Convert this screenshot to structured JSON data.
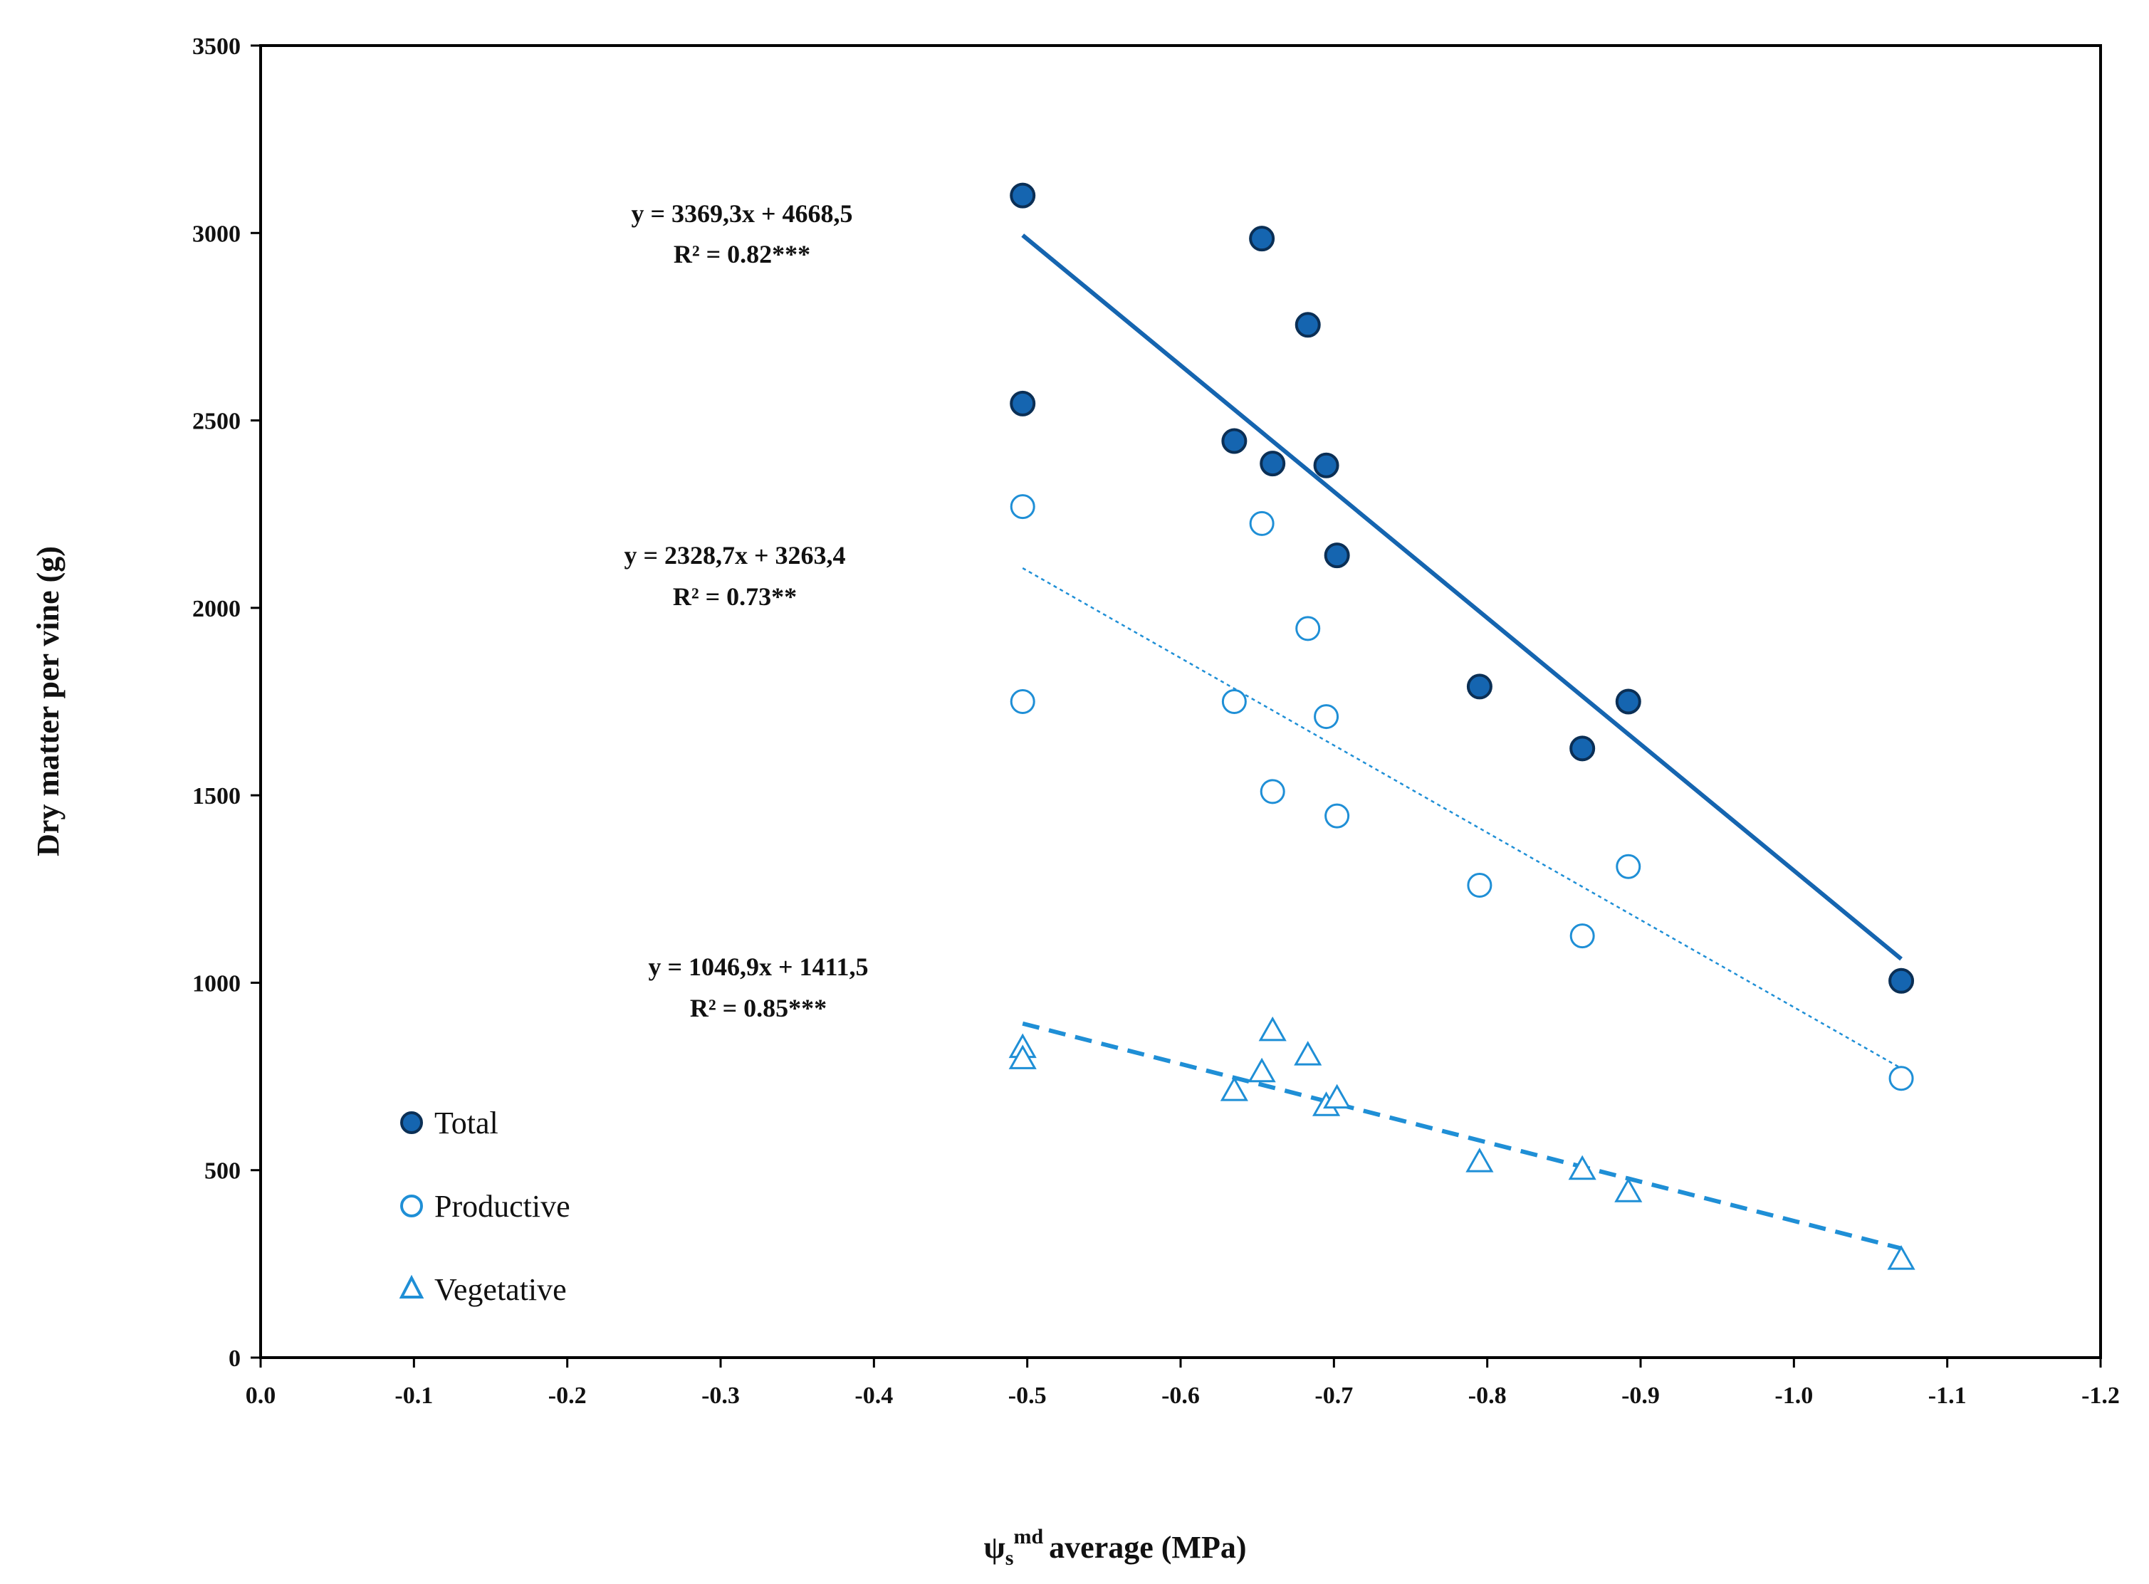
{
  "chart_data": {
    "type": "scatter",
    "title": "",
    "xlabel": "ψsmd average (MPa)",
    "xlabel_parts": {
      "base": "ψ",
      "sub": "s",
      "sup": "md",
      "rest": "average (MPa)"
    },
    "ylabel": "Dry matter per vine (g)",
    "xlim": [
      0,
      -1.2
    ],
    "ylim": [
      0,
      3500
    ],
    "x_ticks": [
      "0.0",
      "-0.1",
      "-0.2",
      "-0.3",
      "-0.4",
      "-0.5",
      "-0.6",
      "-0.7",
      "-0.8",
      "-0.9",
      "-1.0",
      "-1.1",
      "-1.2"
    ],
    "x_tick_values": [
      0,
      -0.1,
      -0.2,
      -0.3,
      -0.4,
      -0.5,
      -0.6,
      -0.7,
      -0.8,
      -0.9,
      -1.0,
      -1.1,
      -1.2
    ],
    "y_ticks": [
      "0",
      "500",
      "1000",
      "1500",
      "2000",
      "2500",
      "3000",
      "3500"
    ],
    "y_tick_values": [
      0,
      500,
      1000,
      1500,
      2000,
      2500,
      3000,
      3500
    ],
    "grid": false,
    "legend_position": "lower-left",
    "series": [
      {
        "name": "Total",
        "marker": "filled-circle",
        "color": "#1565b0",
        "edge_color": "#0b2f55",
        "x": [
          -0.497,
          -0.497,
          -0.653,
          -0.683,
          -0.635,
          -0.66,
          -0.695,
          -0.702,
          -0.795,
          -0.862,
          -0.892,
          -1.07
        ],
        "y": [
          3100,
          2545,
          2985,
          2755,
          2445,
          2385,
          2380,
          2140,
          1790,
          1625,
          1750,
          1005
        ],
        "trendline": {
          "equation": "y = 3369,3x + 4668,5",
          "r2": "R² = 0.82***",
          "slope": 3369.3,
          "intercept": 4668.5,
          "x_range": [
            -0.497,
            -1.07
          ],
          "style": "solid"
        }
      },
      {
        "name": "Productive",
        "marker": "open-circle",
        "color": "#1f8fd6",
        "x": [
          -0.497,
          -0.497,
          -0.653,
          -0.683,
          -0.635,
          -0.66,
          -0.695,
          -0.702,
          -0.795,
          -0.862,
          -0.892,
          -1.07
        ],
        "y": [
          2270,
          1750,
          2225,
          1945,
          1750,
          1510,
          1710,
          1445,
          1260,
          1125,
          1310,
          745
        ],
        "trendline": {
          "equation": "y = 2328,7x + 3263,4",
          "r2": "R² = 0.73**",
          "slope": 2328.7,
          "intercept": 3263.4,
          "x_range": [
            -0.497,
            -1.07
          ],
          "style": "dotted"
        }
      },
      {
        "name": "Vegetative",
        "marker": "open-triangle",
        "color": "#1f8fd6",
        "x": [
          -0.497,
          -0.497,
          -0.653,
          -0.683,
          -0.635,
          -0.66,
          -0.695,
          -0.702,
          -0.795,
          -0.862,
          -0.892,
          -1.07
        ],
        "y": [
          825,
          795,
          760,
          805,
          710,
          870,
          670,
          690,
          520,
          500,
          440,
          260
        ],
        "trendline": {
          "equation": "y = 1046,9x + 1411,5",
          "r2": "R² = 0.85***",
          "slope": 1046.9,
          "intercept": 1411.5,
          "x_range": [
            -0.497,
            -1.07
          ],
          "style": "dashed"
        }
      }
    ]
  },
  "colors": {
    "total": "#1565b0",
    "open_markers": "#1f8fd6",
    "axis": "#000000"
  }
}
